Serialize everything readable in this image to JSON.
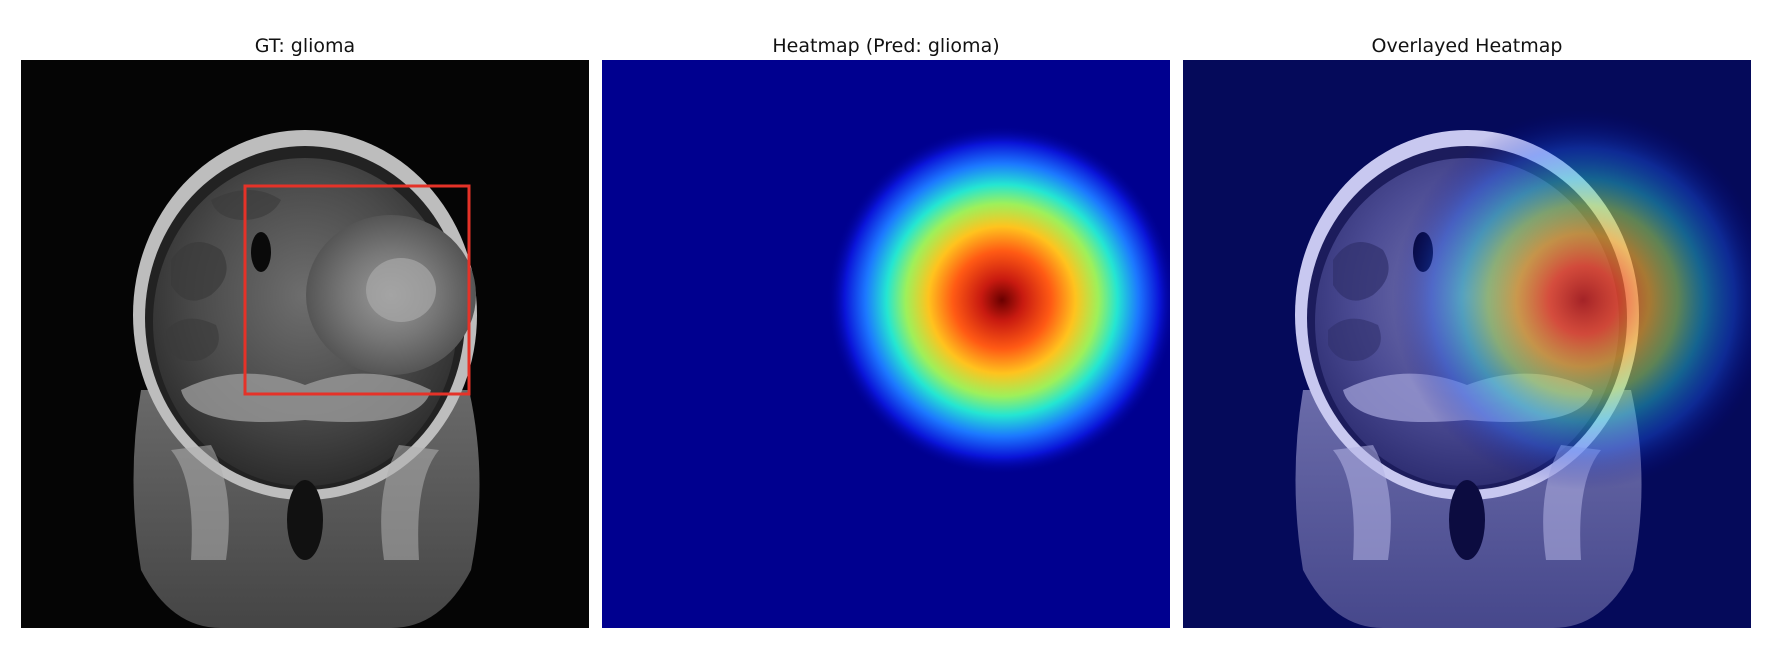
{
  "figure": {
    "panels": [
      {
        "title": "GT: glioma"
      },
      {
        "title": "Heatmap (Pred: glioma)"
      },
      {
        "title": "Overlayed Heatmap"
      }
    ]
  },
  "colors": {
    "background": "#ffffff",
    "gt_box": "#e53228",
    "heatmap_low": "#00007f",
    "heatmap_peak": "#7f0000"
  }
}
